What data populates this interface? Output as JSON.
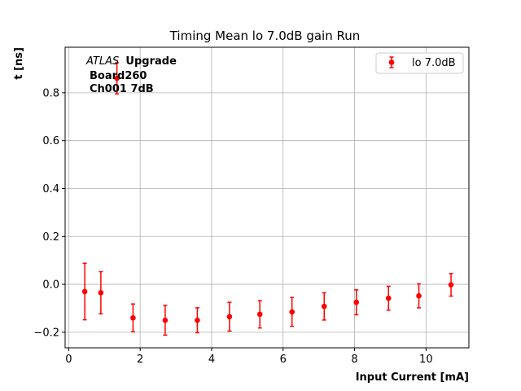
{
  "chart_data": {
    "type": "scatter",
    "title": "Timing Mean lo 7.0dB gain Run",
    "xlabel": "Input Current [mA]",
    "ylabel": "t [ns]",
    "xlim": [
      -0.1,
      11.2
    ],
    "ylim": [
      -0.265,
      0.99
    ],
    "xticks": [
      0,
      2,
      4,
      6,
      8,
      10
    ],
    "yticks": [
      -0.2,
      0.0,
      0.2,
      0.4,
      0.6,
      0.8
    ],
    "ytick_labels": [
      "−0.2",
      "0.0",
      "0.2",
      "0.4",
      "0.6",
      "0.8"
    ],
    "grid": true,
    "legend_position": "top-right",
    "color": "#ff0000",
    "annotation": {
      "atlas": "ATLAS",
      "upgrade": "Upgrade",
      "board": "Board260",
      "channel": "Ch001 7dB"
    },
    "series": [
      {
        "name": "lo 7.0dB",
        "x": [
          0.45,
          0.9,
          1.35,
          1.8,
          2.7,
          3.6,
          4.5,
          5.35,
          6.25,
          7.15,
          8.05,
          8.95,
          9.8,
          10.7
        ],
        "y": [
          -0.03,
          -0.035,
          0.86,
          -0.14,
          -0.15,
          -0.15,
          -0.135,
          -0.125,
          -0.115,
          -0.092,
          -0.075,
          -0.058,
          -0.048,
          -0.002
        ],
        "yerr": [
          0.118,
          0.088,
          0.065,
          0.058,
          0.062,
          0.052,
          0.06,
          0.057,
          0.06,
          0.057,
          0.052,
          0.05,
          0.05,
          0.047
        ]
      }
    ]
  }
}
